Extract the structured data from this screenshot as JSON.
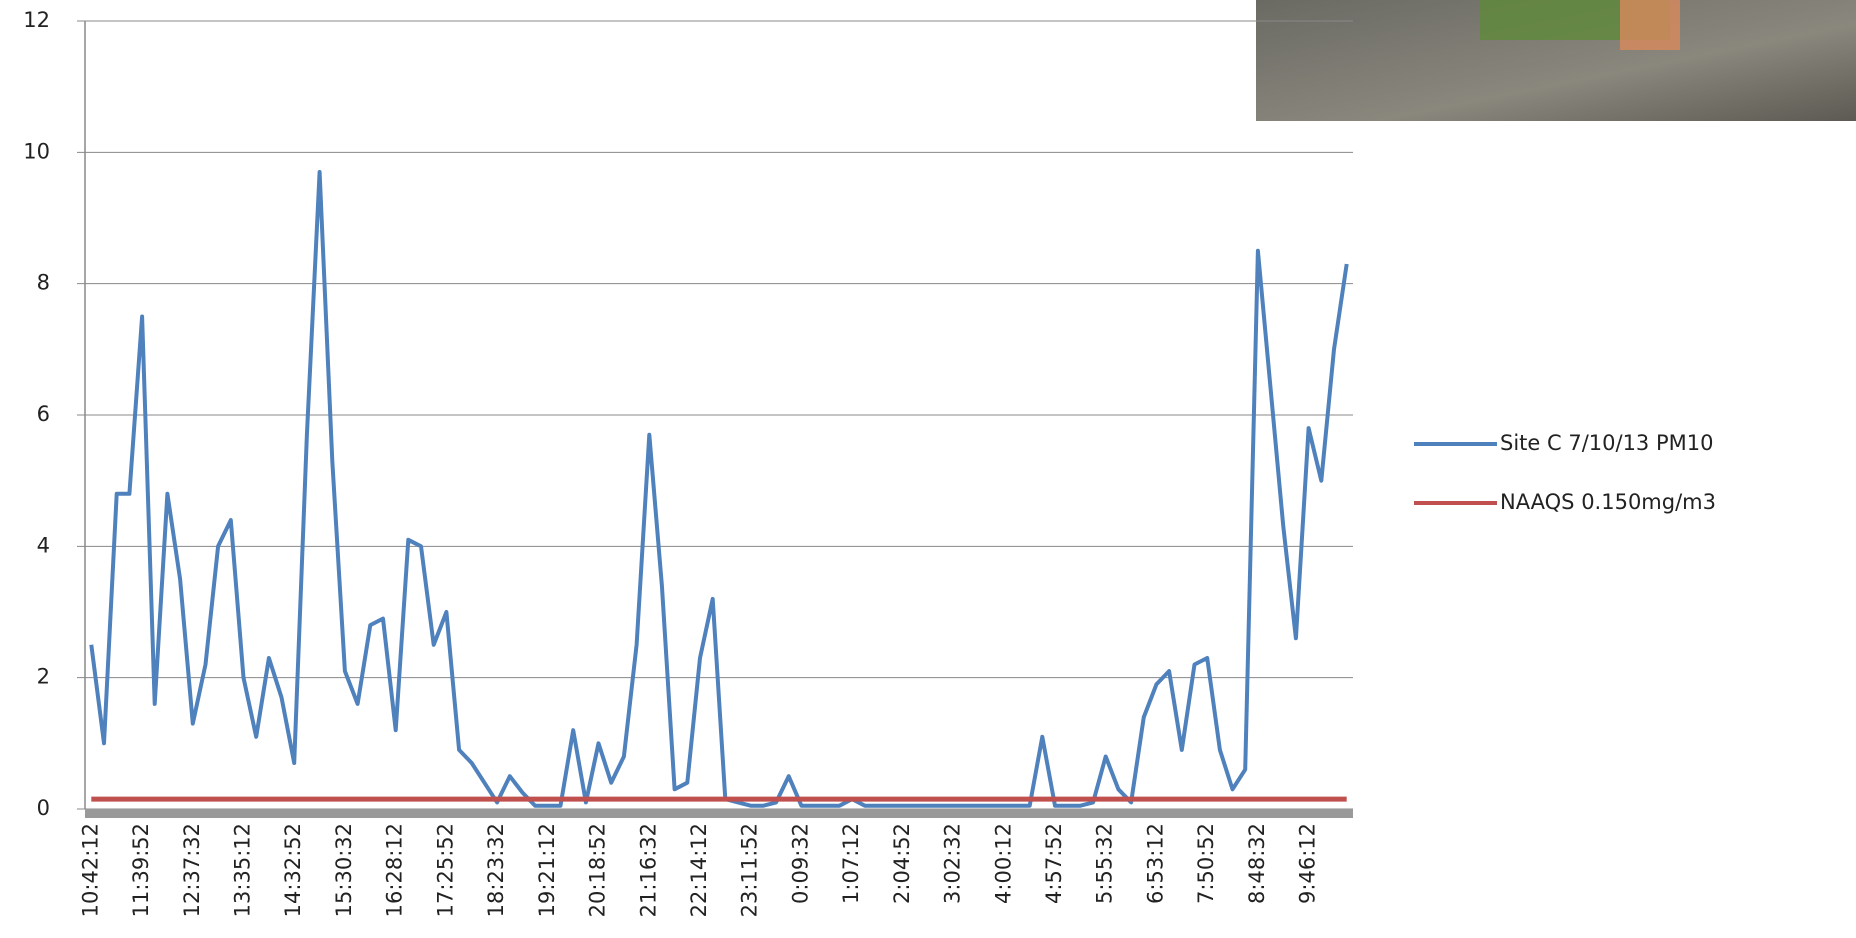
{
  "chart_data": {
    "type": "line",
    "categories": [
      "10:42:12",
      null,
      null,
      null,
      "11:39:52",
      null,
      null,
      null,
      "12:37:32",
      null,
      null,
      null,
      "13:35:12",
      null,
      null,
      null,
      "14:32:52",
      null,
      null,
      null,
      "15:30:32",
      null,
      null,
      null,
      "16:28:12",
      null,
      null,
      null,
      "17:25:52",
      null,
      null,
      null,
      "18:23:32",
      null,
      null,
      null,
      "19:21:12",
      null,
      null,
      null,
      "20:18:52",
      null,
      null,
      null,
      "21:16:32",
      null,
      null,
      null,
      "22:14:12",
      null,
      null,
      null,
      "23:11:52",
      null,
      null,
      null,
      "0:09:32",
      null,
      null,
      null,
      "1:07:12",
      null,
      null,
      null,
      "2:04:52",
      null,
      null,
      null,
      "3:02:32",
      null,
      null,
      null,
      "4:00:12",
      null,
      null,
      null,
      "4:57:52",
      null,
      null,
      null,
      "5:55:32",
      null,
      null,
      null,
      "6:53:12",
      null,
      null,
      null,
      "7:50:52",
      null,
      null,
      null,
      "8:48:32",
      null,
      null,
      null,
      "9:46:12",
      null,
      null,
      null
    ],
    "series": [
      {
        "name": "Site C 7/10/13 PM10",
        "color": "#4f81bd",
        "values": [
          2.5,
          1.0,
          4.8,
          4.8,
          7.5,
          1.6,
          4.8,
          3.5,
          1.3,
          2.2,
          4.0,
          4.4,
          2.0,
          1.1,
          2.3,
          1.7,
          0.7,
          5.7,
          9.7,
          5.3,
          2.1,
          1.6,
          2.8,
          2.9,
          1.2,
          4.1,
          4.0,
          2.5,
          3.0,
          0.9,
          0.7,
          0.4,
          0.1,
          0.5,
          0.25,
          0.05,
          0.05,
          0.05,
          1.2,
          0.1,
          1.0,
          0.4,
          0.8,
          2.5,
          5.7,
          3.4,
          0.3,
          0.4,
          2.3,
          3.2,
          0.15,
          0.1,
          0.05,
          0.05,
          0.1,
          0.5,
          0.05,
          0.05,
          0.05,
          0.05,
          0.15,
          0.05,
          0.05,
          0.05,
          0.05,
          0.05,
          0.05,
          0.05,
          0.05,
          0.05,
          0.05,
          0.05,
          0.05,
          0.05,
          0.05,
          1.1,
          0.05,
          0.05,
          0.05,
          0.1,
          0.8,
          0.3,
          0.1,
          1.4,
          1.9,
          2.1,
          0.9,
          2.2,
          2.3,
          0.9,
          0.3,
          0.6,
          8.5,
          6.4,
          4.3,
          2.6,
          5.8,
          5.0,
          7.0,
          8.3
        ]
      },
      {
        "name": "NAAQS 0.150mg/m3",
        "color": "#c0504d",
        "values": [
          0.15,
          0.15,
          0.15,
          0.15,
          0.15,
          0.15,
          0.15,
          0.15,
          0.15,
          0.15,
          0.15,
          0.15,
          0.15,
          0.15,
          0.15,
          0.15,
          0.15,
          0.15,
          0.15,
          0.15,
          0.15,
          0.15,
          0.15,
          0.15,
          0.15,
          0.15,
          0.15,
          0.15,
          0.15,
          0.15,
          0.15,
          0.15,
          0.15,
          0.15,
          0.15,
          0.15,
          0.15,
          0.15,
          0.15,
          0.15,
          0.15,
          0.15,
          0.15,
          0.15,
          0.15,
          0.15,
          0.15,
          0.15,
          0.15,
          0.15,
          0.15,
          0.15,
          0.15,
          0.15,
          0.15,
          0.15,
          0.15,
          0.15,
          0.15,
          0.15,
          0.15,
          0.15,
          0.15,
          0.15,
          0.15,
          0.15,
          0.15,
          0.15,
          0.15,
          0.15,
          0.15,
          0.15,
          0.15,
          0.15,
          0.15,
          0.15,
          0.15,
          0.15,
          0.15,
          0.15,
          0.15,
          0.15,
          0.15,
          0.15,
          0.15,
          0.15,
          0.15,
          0.15,
          0.15,
          0.15,
          0.15,
          0.15,
          0.15,
          0.15,
          0.15,
          0.15,
          0.15,
          0.15,
          0.15,
          0.15
        ]
      }
    ],
    "ylim": [
      0,
      12
    ],
    "yticks": [
      0,
      2,
      4,
      6,
      8,
      10,
      12
    ],
    "grid": true,
    "legend": "right"
  }
}
